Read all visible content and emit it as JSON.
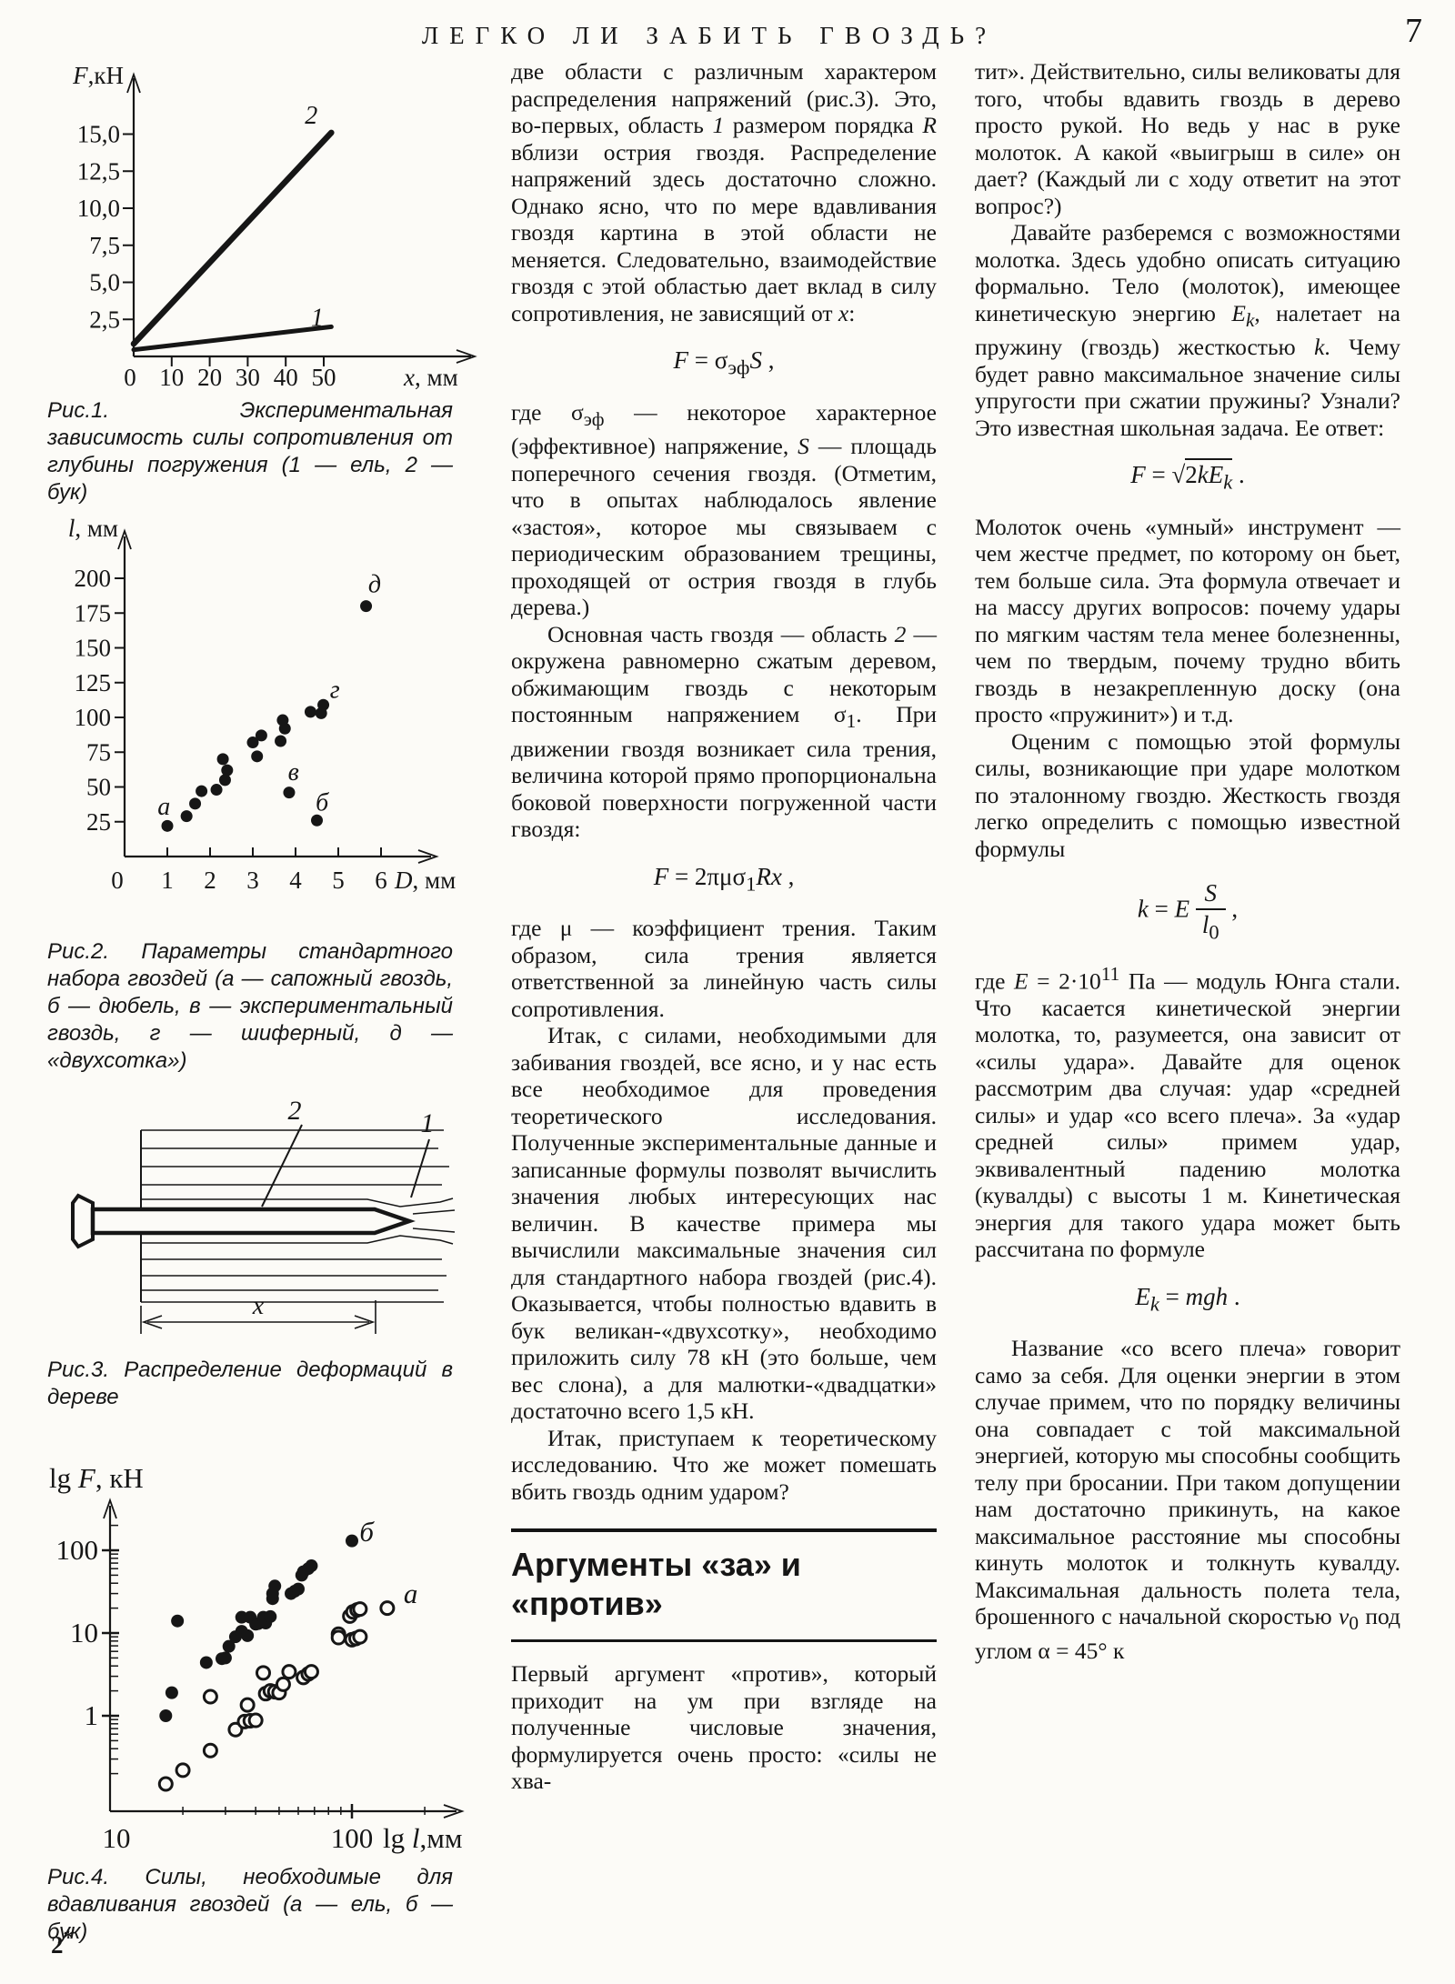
{
  "page": {
    "title": "ЛЕГКО ЛИ ЗАБИТЬ ГВОЗДЬ?",
    "page_number": "7",
    "footnote_html": "2<sup>*</sup>",
    "ink_color": "#161616",
    "paper_color": "#fcfbf7"
  },
  "figures": {
    "fig1_caption": "Рис.1. Экспериментальная зависимость силы сопротивления от глубины погружения (1 — ель, 2 — бук)",
    "fig2_caption": "Рис.2. Параметры стандартного набора гвоздей (а — сапожный гвоздь, б — дюбель, в — экспериментальный гвоздь, г — шиферный, д — «двухсотка»)",
    "fig3_caption": "Рис.3. Распределение деформаций в дереве",
    "fig4_caption": "Рис.4. Силы, необходимые для вдавливания гвоздей (а — ель, б — бук)"
  },
  "middle_column": {
    "paragraphs": [
      "две области с различным характером распределения напряжений (рис.3). Это, во-первых, область <i>1</i> размером порядка <i>R</i> вблизи острия гвоздя. Распределение напряжений здесь достаточно сложно. Однако ясно, что по мере вдавливания гвоздя картина в этой области не меняется. Следовательно, взаимодействие гвоздя с этой областью дает вклад в силу сопротивления, не зависящий от <i>x</i>:",
      "где σ<sub>эф</sub> — некоторое характерное (эффективное) напряжение, <i>S</i> — площадь поперечного сечения гвоздя. (Отметим, что в опытах наблюдалось явление «застоя», которое мы связываем с периодическим образованием трещины, проходящей от острия гвоздя в глубь дерева.)",
      "Основная часть гвоздя — область <i>2</i> — окружена равномерно сжатым деревом, обжимающим гвоздь с некоторым постоянным напряжением σ<sub>1</sub>. При движении гвоздя возникает сила трения, величина которой прямо пропорциональна боковой поверхности погруженной части гвоздя:",
      "где μ — коэффициент трения. Таким образом, сила трения является ответственной за линейную часть силы сопротивления.",
      "Итак, с силами, необходимыми для забивания гвоздей, все ясно, и у нас есть все необходимое для проведения теоретического исследования. Полученные экспериментальные данные и записанные формулы позволят вычислить значения любых интересующих нас величин. В качестве примера мы вычислили максимальные значения сил для стандартного набора гвоздей (рис.4). Оказывается, чтобы полностью вдавить в бук великан-«двухсотку», необходимо приложить силу 78 кН (это больше, чем вес слона), а для малютки-«двадцатки» достаточно всего 1,5 кН.",
      "Итак, приступаем к теоретическому исследованию. Что же может помешать вбить гвоздь одним ударом?",
      "Первый аргумент «против», который приходит на ум при взгляде на полученные числовые значения, формулируется очень просто: «силы не хва-"
    ],
    "formulas": [
      "<i>F</i> = σ<sub>эф</sub><i>S</i> ,",
      "<i>F</i> = 2πμσ<sub>1</sub><i>Rx</i> ,"
    ],
    "section_heading": "Аргументы «за» и «против»"
  },
  "right_column": {
    "paragraphs": [
      "тит». Действительно, силы великоваты для того, чтобы вдавить гвоздь в дерево просто рукой. Но ведь у нас в руке молоток. А какой «выигрыш в силе» он дает? (Каждый ли с ходу ответит на этот вопрос?)",
      "Давайте разберемся с возможностями молотка. Здесь удобно описать ситуацию формально. Тело (молоток), имеющее кинетическую энергию <i>E<sub>k</sub></i>, налетает на пружину (гвоздь) жесткостью <i>k</i>. Чему будет равно максимальное значение силы упругости при сжатии пружины? Узнали? Это известная школьная задача. Ее ответ:",
      "Молоток очень «умный» инструмент — чем жестче предмет, по которому он бьет, тем больше сила. Эта формула отвечает и на массу других вопросов: почему удары по мягким частям тела менее болезненны, чем по твердым, почему трудно вбить гвоздь в незакрепленную доску (она просто «пружинит») и т.д.",
      "Оценим с помощью этой формулы силы, возникающие при ударе молотком по эталонному гвоздю. Жесткость гвоздя легко определить с помощью известной формулы",
      "где <i>E</i> = 2·10<sup>11</sup> Па — модуль Юнга стали. Что касается кинетической энергии молотка, то, разумеется, она зависит от «силы удара». Давайте для оценок рассмотрим два случая: удар «средней силы» и удар «со всего плеча». За «удар средней силы» примем удар, эквивалентный падению молотка (кувалды) с высоты 1 м. Кинетическая энергия для такого удара может быть рассчитана по формуле",
      "Название «со всего плеча» говорит само за себя. Для оценки энергии в этом случае примем, что по порядку величины она совпадает с той максимальной энергией, которую мы способны сообщить телу при бросании. При таком допущении нам достаточно прикинуть, на какое максимальное расстояние мы способны кинуть молоток и толкнуть кувалду. Максимальная дальность полета тела, брошенного с начальной скоростью <i>v</i><sub>0</sub> под углом α = 45° к"
    ],
    "formulas": [
      "<i>F</i> = <span class='sqrt'>√<span class='ovl'>2<i>kE<sub>k</sub></i></span></span> .",
      "<i>k</i> = <i>E</i> <span class='frac'><span class='num'><i>S</i></span><span class='den'><i>l</i><sub>0</sub></span></span> ,",
      "<i>E<sub>k</sub></i> = <i>mgh</i> ."
    ]
  },
  "chart_data": [
    {
      "id": "fig1",
      "type": "line",
      "title": "Рис.1. Экспериментальная зависимость силы сопротивления от глубины погружения",
      "xlabel": {
        "var": "x",
        "unit": "мм",
        "sep": ", "
      },
      "ylabel": {
        "var": "F",
        "unit": "кН",
        "sep": ","
      },
      "xlim": [
        0,
        57
      ],
      "ylim": [
        0,
        17.5
      ],
      "xticks": [
        0,
        10,
        20,
        30,
        40,
        50
      ],
      "yticks": [
        2.5,
        5.0,
        7.5,
        10.0,
        12.5,
        15.0
      ],
      "ytick_labels": [
        "2,5",
        "5,0",
        "7,5",
        "10,0",
        "12,5",
        "15,0"
      ],
      "grid": false,
      "series": [
        {
          "name": "1 — ель",
          "label": "1",
          "points": [
            [
              0,
              0.45
            ],
            [
              52,
              2.0
            ]
          ],
          "width": 5,
          "label_at": [
            48.3,
            2.55
          ]
        },
        {
          "name": "2 — бук",
          "label": "2",
          "points": [
            [
              0,
              0.85
            ],
            [
              52,
              15.1
            ]
          ],
          "width": 6.5,
          "label_at": [
            46.7,
            16.2
          ]
        }
      ]
    },
    {
      "id": "fig2",
      "type": "scatter",
      "title": "Рис.2. Параметры стандартного набора гвоздей",
      "xlabel": {
        "var": "D",
        "unit": "мм",
        "sep": ", "
      },
      "ylabel": {
        "var": "l",
        "unit": "мм",
        "sep": ", "
      },
      "xlim": [
        0,
        7.2
      ],
      "ylim": [
        0,
        230
      ],
      "xticks": [
        0,
        1,
        2,
        3,
        4,
        5,
        6
      ],
      "yticks": [
        25,
        50,
        75,
        100,
        125,
        150,
        175,
        200
      ],
      "grid": false,
      "points": [
        [
          1.0,
          22
        ],
        [
          1.45,
          29
        ],
        [
          1.65,
          38
        ],
        [
          1.8,
          47
        ],
        [
          2.15,
          48
        ],
        [
          2.35,
          55
        ],
        [
          2.4,
          62
        ],
        [
          2.3,
          70
        ],
        [
          3.0,
          82
        ],
        [
          3.1,
          72
        ],
        [
          3.2,
          87
        ],
        [
          3.65,
          83
        ],
        [
          3.75,
          92
        ],
        [
          3.7,
          98
        ],
        [
          3.85,
          46
        ],
        [
          4.35,
          104
        ],
        [
          4.6,
          103
        ],
        [
          4.65,
          109
        ],
        [
          4.5,
          26
        ],
        [
          5.65,
          180
        ]
      ],
      "point_labels": [
        {
          "text": "а",
          "x": 0.92,
          "y": 30
        },
        {
          "text": "б",
          "x": 4.62,
          "y": 33
        },
        {
          "text": "в",
          "x": 3.95,
          "y": 55
        },
        {
          "text": "г",
          "x": 4.92,
          "y": 114
        },
        {
          "text": "д",
          "x": 5.85,
          "y": 190
        }
      ]
    },
    {
      "id": "fig3",
      "type": "diagram",
      "title": "Рис.3. Распределение деформаций в дереве",
      "labels": {
        "region2": "2",
        "region1": "1",
        "depth": "x"
      }
    },
    {
      "id": "fig4",
      "type": "scatter",
      "scale": "log-log",
      "title": "Рис.4. Силы, необходимые для вдавливания гвоздей",
      "xlabel": {
        "prefix": "lg",
        "var": "l",
        "unit": "мм",
        "sep": ","
      },
      "ylabel": {
        "prefix": "lg",
        "var": "F",
        "unit": "кН",
        "sep": ", "
      },
      "xlim": [
        10,
        230
      ],
      "ylim": [
        0.07,
        250
      ],
      "xticks": [
        10,
        100
      ],
      "yticks": [
        1,
        10,
        100
      ],
      "x_minor_ticks": [
        20,
        30,
        40,
        50,
        60,
        70,
        80,
        90,
        200
      ],
      "y_minor_ticks": [
        0.2,
        0.3,
        0.4,
        0.5,
        0.6,
        0.7,
        0.8,
        0.9,
        2,
        3,
        4,
        5,
        6,
        7,
        8,
        9,
        20,
        30,
        40,
        50,
        60,
        70,
        80,
        90,
        200
      ],
      "grid": false,
      "series": [
        {
          "name": "б — бук",
          "marker": "filled",
          "label": "б",
          "label_at": [
            115,
            128
          ],
          "points": [
            [
              17,
              1.0
            ],
            [
              18,
              1.9
            ],
            [
              19,
              14
            ],
            [
              25,
              4.4
            ],
            [
              29,
              4.9
            ],
            [
              30,
              5.0
            ],
            [
              31,
              6.9
            ],
            [
              33,
              9.0
            ],
            [
              35,
              10.5
            ],
            [
              35,
              15.5
            ],
            [
              37,
              9.3
            ],
            [
              38,
              15.5
            ],
            [
              40,
              12.8
            ],
            [
              41,
              13.0
            ],
            [
              43,
              15.5
            ],
            [
              44,
              13.2
            ],
            [
              46,
              15.8
            ],
            [
              47,
              26
            ],
            [
              47,
              30
            ],
            [
              48,
              37
            ],
            [
              56,
              30
            ],
            [
              58,
              32
            ],
            [
              60,
              34
            ],
            [
              62,
              50
            ],
            [
              63,
              55
            ],
            [
              66,
              60
            ],
            [
              68,
              65
            ],
            [
              100,
              130
            ]
          ]
        },
        {
          "name": "а — ель",
          "marker": "open",
          "label": "а",
          "label_at": [
            175,
            23
          ],
          "points": [
            [
              17,
              0.15
            ],
            [
              20,
              0.22
            ],
            [
              26,
              0.38
            ],
            [
              26,
              1.7
            ],
            [
              33,
              0.68
            ],
            [
              36,
              0.85
            ],
            [
              38,
              0.87
            ],
            [
              40,
              0.88
            ],
            [
              37,
              1.35
            ],
            [
              44,
              1.85
            ],
            [
              46,
              2.0
            ],
            [
              48,
              1.95
            ],
            [
              50,
              1.9
            ],
            [
              43,
              3.3
            ],
            [
              52,
              2.4
            ],
            [
              55,
              3.4
            ],
            [
              63,
              2.9
            ],
            [
              66,
              3.2
            ],
            [
              68,
              3.4
            ],
            [
              88,
              9.7
            ],
            [
              88,
              8.8
            ],
            [
              100,
              8.3
            ],
            [
              104,
              8.6
            ],
            [
              108,
              9.0
            ],
            [
              98,
              16
            ],
            [
              101,
              18
            ],
            [
              105,
              19
            ],
            [
              108,
              19.5
            ],
            [
              140,
              20
            ]
          ]
        }
      ]
    }
  ]
}
